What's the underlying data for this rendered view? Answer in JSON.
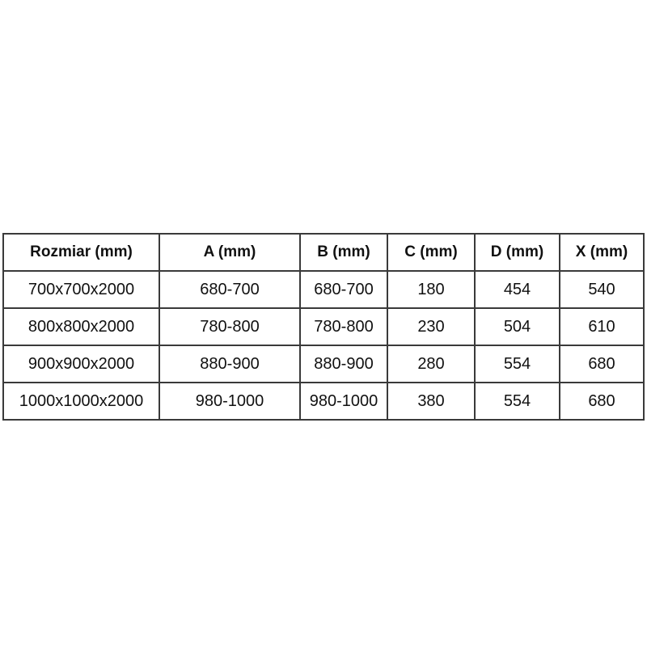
{
  "chart_data": {
    "type": "table",
    "title": "",
    "columns": [
      "Rozmiar (mm)",
      "A (mm)",
      "B (mm)",
      "C (mm)",
      "D (mm)",
      "X (mm)"
    ],
    "rows": [
      [
        "700x700x2000",
        "680-700",
        "680-700",
        "180",
        "454",
        "540"
      ],
      [
        "800x800x2000",
        "780-800",
        "780-800",
        "230",
        "504",
        "610"
      ],
      [
        "900x900x2000",
        "880-900",
        "880-900",
        "280",
        "554",
        "680"
      ],
      [
        "1000x1000x2000",
        "980-1000",
        "980-1000",
        "380",
        "554",
        "680"
      ]
    ],
    "layout": {
      "grid": "on",
      "header_bold": true,
      "cell_alignment": "center"
    }
  },
  "colors": {
    "background": "#ffffff",
    "border": "#3a3a3a",
    "text": "#111111"
  }
}
